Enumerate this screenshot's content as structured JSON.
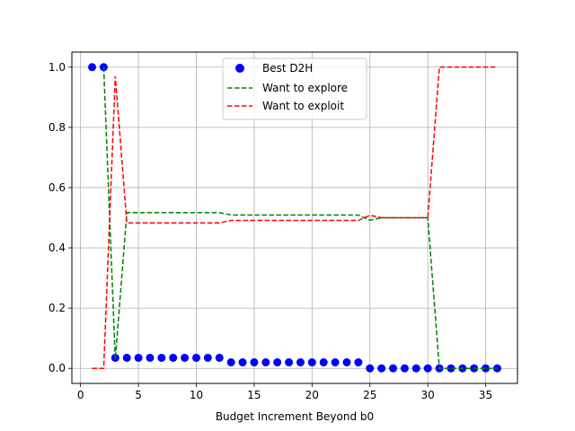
{
  "chart_data": {
    "type": "line",
    "title": "",
    "xlabel": "Budget Increment Beyond b0",
    "ylabel": "",
    "xlim": [
      -0.75,
      37.75
    ],
    "ylim": [
      -0.05,
      1.05
    ],
    "xticks": [
      0,
      5,
      10,
      15,
      20,
      25,
      30,
      35
    ],
    "yticks": [
      0.0,
      0.2,
      0.4,
      0.6,
      0.8,
      1.0
    ],
    "xtick_labels": [
      "0",
      "5",
      "10",
      "15",
      "20",
      "25",
      "30",
      "35"
    ],
    "ytick_labels": [
      "0.0",
      "0.2",
      "0.4",
      "0.6",
      "0.8",
      "1.0"
    ],
    "grid": true,
    "legend_position": "top-center",
    "series": [
      {
        "name": "Best D2H",
        "kind": "scatter",
        "color": "#0000ff",
        "x": [
          1,
          2,
          3,
          4,
          5,
          6,
          7,
          8,
          9,
          10,
          11,
          12,
          13,
          14,
          15,
          16,
          17,
          18,
          19,
          20,
          21,
          22,
          23,
          24,
          25,
          26,
          27,
          28,
          29,
          30,
          31,
          32,
          33,
          34,
          35,
          36
        ],
        "y": [
          1.0,
          1.0,
          0.035,
          0.035,
          0.035,
          0.035,
          0.035,
          0.035,
          0.035,
          0.035,
          0.035,
          0.035,
          0.02,
          0.02,
          0.02,
          0.02,
          0.02,
          0.02,
          0.02,
          0.02,
          0.02,
          0.02,
          0.02,
          0.02,
          0.0,
          0.0,
          0.0,
          0.0,
          0.0,
          0.0,
          0.0,
          0.0,
          0.0,
          0.0,
          0.0,
          0.0
        ]
      },
      {
        "name": "Want to explore",
        "kind": "line",
        "style": "dashed",
        "color": "#008000",
        "x": [
          2,
          3,
          4,
          5,
          6,
          7,
          8,
          9,
          10,
          11,
          12,
          13,
          14,
          15,
          16,
          17,
          18,
          19,
          20,
          21,
          22,
          23,
          24,
          25,
          26,
          27,
          28,
          29,
          30,
          31,
          32,
          33,
          34,
          35,
          36
        ],
        "y": [
          1.0,
          0.03,
          0.517,
          0.517,
          0.517,
          0.517,
          0.517,
          0.517,
          0.517,
          0.517,
          0.517,
          0.509,
          0.509,
          0.509,
          0.509,
          0.509,
          0.509,
          0.509,
          0.509,
          0.509,
          0.509,
          0.509,
          0.509,
          0.492,
          0.5,
          0.5,
          0.5,
          0.5,
          0.5,
          0.0,
          0.0,
          0.0,
          0.0,
          0.0,
          0.0
        ]
      },
      {
        "name": "Want to exploit",
        "kind": "line",
        "style": "dashed",
        "color": "#ff0000",
        "x": [
          1,
          2,
          3,
          4,
          5,
          6,
          7,
          8,
          9,
          10,
          11,
          12,
          13,
          14,
          15,
          16,
          17,
          18,
          19,
          20,
          21,
          22,
          23,
          24,
          25,
          26,
          27,
          28,
          29,
          30,
          31,
          32,
          33,
          34,
          35,
          36
        ],
        "y": [
          0.0,
          0.0,
          0.97,
          0.483,
          0.483,
          0.483,
          0.483,
          0.483,
          0.483,
          0.483,
          0.483,
          0.483,
          0.491,
          0.491,
          0.491,
          0.491,
          0.491,
          0.491,
          0.491,
          0.491,
          0.491,
          0.491,
          0.491,
          0.491,
          0.508,
          0.5,
          0.5,
          0.5,
          0.5,
          0.5,
          1.0,
          1.0,
          1.0,
          1.0,
          1.0,
          1.0
        ]
      }
    ]
  }
}
